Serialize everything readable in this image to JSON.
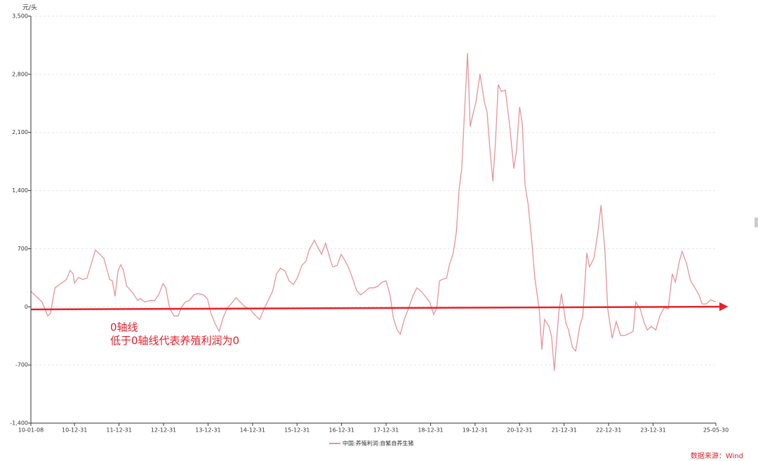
{
  "chart_data": {
    "type": "line",
    "y_unit": "元/头",
    "source": "数据来源：Wind",
    "annotations": [
      "0轴线",
      "低于0轴线代表养殖利润为0"
    ],
    "grid": true,
    "legend": "bottom",
    "xlim": [
      2010.02,
      2025.41
    ],
    "ylim": [
      -1400,
      3500
    ],
    "yticks": [
      {
        "value": -1400,
        "label": "-1,400"
      },
      -700,
      0,
      700,
      {
        "value": 1400,
        "label": "1,400"
      },
      {
        "value": 2100,
        "label": "2,100"
      },
      {
        "value": 2800,
        "label": "2,800"
      },
      {
        "value": 3500,
        "label": "3,500"
      }
    ],
    "xticks": [
      {
        "value": 2010.02,
        "label": "10-01-08"
      },
      {
        "value": 2011.0,
        "label": "10-12-31"
      },
      {
        "value": 2012.0,
        "label": "11-12-31"
      },
      {
        "value": 2013.0,
        "label": "12-12-31"
      },
      {
        "value": 2014.0,
        "label": "13-12-31"
      },
      {
        "value": 2015.0,
        "label": "14-12-31"
      },
      {
        "value": 2016.0,
        "label": "15-12-31"
      },
      {
        "value": 2017.0,
        "label": "16-12-31"
      },
      {
        "value": 2018.0,
        "label": "17-12-31"
      },
      {
        "value": 2019.0,
        "label": "18-12-31"
      },
      {
        "value": 2020.0,
        "label": "19-12-31"
      },
      {
        "value": 2021.0,
        "label": "20-12-31"
      },
      {
        "value": 2022.0,
        "label": "21-12-31"
      },
      {
        "value": 2023.0,
        "label": "22-12-31"
      },
      {
        "value": 2024.0,
        "label": "23-12-31"
      },
      {
        "value": 2025.41,
        "label": "25-05-30"
      }
    ],
    "x": [
      2010.02,
      2010.27,
      2010.4,
      2010.46,
      2010.56,
      2010.67,
      2010.82,
      2010.9,
      2010.97,
      2011.0,
      2011.09,
      2011.19,
      2011.28,
      2011.38,
      2011.47,
      2011.57,
      2011.66,
      2011.79,
      2011.85,
      2011.91,
      2011.98,
      2012.04,
      2012.1,
      2012.17,
      2012.32,
      2012.42,
      2012.48,
      2012.58,
      2012.7,
      2012.8,
      2012.89,
      2012.99,
      2013.05,
      2013.14,
      2013.24,
      2013.33,
      2013.4,
      2013.49,
      2013.58,
      2013.68,
      2013.77,
      2013.9,
      2013.99,
      2014.06,
      2014.15,
      2014.25,
      2014.34,
      2014.44,
      2014.53,
      2014.63,
      2014.72,
      2014.85,
      2014.94,
      2015.04,
      2015.16,
      2015.26,
      2015.35,
      2015.45,
      2015.54,
      2015.63,
      2015.73,
      2015.82,
      2015.92,
      2016.01,
      2016.11,
      2016.2,
      2016.27,
      2016.39,
      2016.45,
      2016.55,
      2016.64,
      2016.74,
      2016.8,
      2016.9,
      2016.99,
      2017.05,
      2017.15,
      2017.24,
      2017.34,
      2017.43,
      2017.53,
      2017.62,
      2017.72,
      2017.81,
      2017.91,
      2018.0,
      2018.09,
      2018.16,
      2018.25,
      2018.32,
      2018.41,
      2018.5,
      2018.6,
      2018.69,
      2018.79,
      2018.88,
      2018.98,
      2019.07,
      2019.14,
      2019.2,
      2019.26,
      2019.36,
      2019.42,
      2019.51,
      2019.58,
      2019.64,
      2019.7,
      2019.77,
      2019.83,
      2019.89,
      2019.96,
      2020.02,
      2020.11,
      2020.21,
      2020.27,
      2020.33,
      2020.4,
      2020.46,
      2020.52,
      2020.59,
      2020.68,
      2020.78,
      2020.87,
      2020.93,
      2021.0,
      2021.06,
      2021.12,
      2021.19,
      2021.28,
      2021.34,
      2021.44,
      2021.5,
      2021.56,
      2021.66,
      2021.72,
      2021.78,
      2021.88,
      2021.94,
      2022.04,
      2022.1,
      2022.19,
      2022.26,
      2022.35,
      2022.42,
      2022.51,
      2022.57,
      2022.67,
      2022.76,
      2022.83,
      2022.92,
      2022.98,
      2023.08,
      2023.17,
      2023.27,
      2023.36,
      2023.46,
      2023.55,
      2023.61,
      2023.71,
      2023.8,
      2023.87,
      2023.96,
      2024.06,
      2024.15,
      2024.25,
      2024.34,
      2024.43,
      2024.5,
      2024.59,
      2024.65,
      2024.75,
      2024.84,
      2024.94,
      2025.03,
      2025.1,
      2025.19,
      2025.29,
      2025.41
    ],
    "series": [
      {
        "name": "中国:养殖利润:自繁自养生猪",
        "color": "#e8929c",
        "values": [
          186,
          59,
          -110,
          -76,
          228,
          270,
          329,
          439,
          397,
          287,
          355,
          329,
          346,
          524,
          684,
          633,
          583,
          329,
          313,
          127,
          439,
          507,
          439,
          253,
          160,
          76,
          101,
          59,
          76,
          76,
          144,
          279,
          228,
          -25,
          -110,
          -110,
          -8,
          59,
          76,
          144,
          160,
          144,
          93,
          -68,
          -194,
          -296,
          -127,
          -8,
          42,
          110,
          59,
          -8,
          -25,
          -93,
          -152,
          -25,
          76,
          186,
          397,
          465,
          431,
          313,
          270,
          355,
          499,
          549,
          684,
          802,
          735,
          633,
          769,
          583,
          481,
          499,
          633,
          583,
          481,
          355,
          194,
          144,
          186,
          228,
          228,
          245,
          296,
          313,
          144,
          -127,
          -279,
          -329,
          -152,
          -25,
          127,
          228,
          186,
          127,
          59,
          -93,
          -8,
          313,
          329,
          346,
          499,
          650,
          904,
          1410,
          1664,
          2424,
          3057,
          2171,
          2340,
          2466,
          2804,
          2466,
          2340,
          1917,
          1512,
          2002,
          2677,
          2593,
          2610,
          2171,
          1664,
          1875,
          2407,
          2213,
          1478,
          1242,
          752,
          355,
          -25,
          -515,
          -152,
          -236,
          -363,
          -769,
          -68,
          160,
          -194,
          -279,
          -490,
          -532,
          -236,
          -110,
          650,
          481,
          583,
          904,
          1225,
          650,
          -25,
          -380,
          -177,
          -346,
          -346,
          -321,
          -296,
          59,
          -25,
          -194,
          -279,
          -236,
          -279,
          -110,
          -8,
          -25,
          397,
          296,
          549,
          667,
          524,
          313,
          228,
          144,
          34,
          34,
          84,
          59
        ]
      }
    ]
  }
}
